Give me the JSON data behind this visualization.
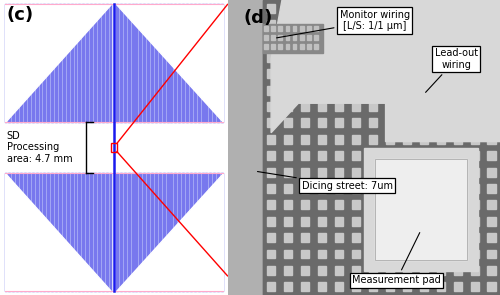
{
  "fig_width": 5.0,
  "fig_height": 2.95,
  "dpi": 100,
  "bg_color": "#ffffff",
  "label_c": "(c)",
  "label_d": "(d)",
  "panel_c": {
    "stripe_color": "#7878ee",
    "stripe_bg": "#b8c0f8",
    "center_line_color": "#1a1aee",
    "pink_line_color": "#ffaacc",
    "annotation_text": "SD\nProcessing\narea: 4.7 mm"
  },
  "panel_d": {
    "bg_outer": "#909090",
    "dicing_street_color": "#b0b0b0",
    "chip_bg": "#808080",
    "dot_color": "#d0d0d0",
    "dot_region_bg": "#787878",
    "leadout_color": "#d0d0d0",
    "pad_outer_color": "#e0e0e0",
    "pad_inner_color": "#eeeeee",
    "monitor_strip_color": "#c0c0c0",
    "labels": {
      "monitor_wiring": "Monitor wiring\n[L/S: 1/1 μm]",
      "lead_out": "Lead-out\nwiring",
      "dicing": "Dicing street: 7um",
      "measurement": "Measurement pad"
    }
  }
}
